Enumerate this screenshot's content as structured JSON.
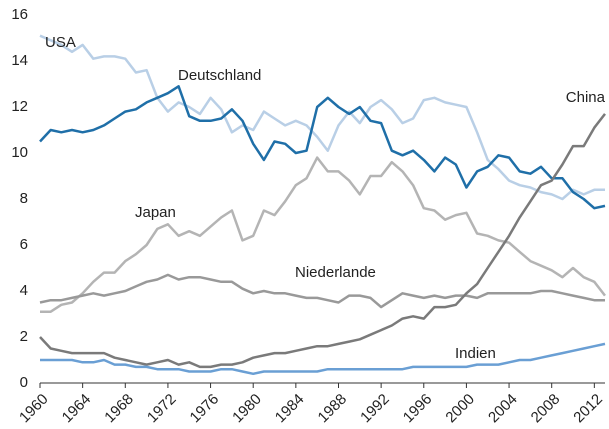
{
  "chart_data": {
    "type": "line",
    "x": [
      1960,
      1961,
      1962,
      1963,
      1964,
      1965,
      1966,
      1967,
      1968,
      1969,
      1970,
      1971,
      1972,
      1973,
      1974,
      1975,
      1976,
      1977,
      1978,
      1979,
      1980,
      1981,
      1982,
      1983,
      1984,
      1985,
      1986,
      1987,
      1988,
      1989,
      1990,
      1991,
      1992,
      1993,
      1994,
      1995,
      1996,
      1997,
      1998,
      1999,
      2000,
      2001,
      2002,
      2003,
      2004,
      2005,
      2006,
      2007,
      2008,
      2009,
      2010,
      2011,
      2012,
      2013
    ],
    "series": [
      {
        "name": "USA",
        "color": "#b9cfe6",
        "values": [
          15.1,
          14.9,
          14.7,
          14.4,
          14.7,
          14.1,
          14.2,
          14.2,
          14.1,
          13.5,
          13.6,
          12.4,
          11.8,
          12.2,
          12.0,
          11.7,
          12.4,
          11.9,
          10.9,
          11.2,
          11.0,
          11.8,
          11.5,
          11.2,
          11.4,
          11.2,
          10.7,
          10.1,
          11.2,
          11.8,
          11.3,
          12.0,
          12.3,
          11.9,
          11.3,
          11.5,
          12.3,
          12.4,
          12.2,
          12.1,
          12.0,
          10.9,
          9.7,
          9.3,
          8.8,
          8.6,
          8.5,
          8.3,
          8.2,
          8.0,
          8.4,
          8.2,
          8.4,
          8.4
        ]
      },
      {
        "name": "Deutschland",
        "color": "#1f6fa8",
        "values": [
          10.5,
          11.0,
          10.9,
          11.0,
          10.9,
          11.0,
          11.2,
          11.5,
          11.8,
          11.9,
          12.2,
          12.4,
          12.6,
          12.9,
          11.6,
          11.4,
          11.4,
          11.5,
          11.9,
          11.4,
          10.4,
          9.7,
          10.5,
          10.4,
          10.0,
          10.1,
          12.0,
          12.4,
          12.0,
          11.7,
          12.0,
          11.4,
          11.3,
          10.1,
          9.9,
          10.1,
          9.7,
          9.2,
          9.8,
          9.5,
          8.5,
          9.2,
          9.4,
          9.9,
          9.8,
          9.2,
          9.1,
          9.4,
          8.9,
          8.9,
          8.3,
          8.0,
          7.6,
          7.7
        ]
      },
      {
        "name": "Japan",
        "color": "#b4b4b4",
        "values": [
          3.1,
          3.1,
          3.4,
          3.5,
          3.9,
          4.4,
          4.8,
          4.8,
          5.3,
          5.6,
          6.0,
          6.7,
          6.9,
          6.4,
          6.6,
          6.4,
          6.8,
          7.2,
          7.5,
          6.2,
          6.4,
          7.5,
          7.3,
          7.9,
          8.6,
          8.9,
          9.8,
          9.2,
          9.2,
          8.8,
          8.2,
          9.0,
          9.0,
          9.6,
          9.2,
          8.6,
          7.6,
          7.5,
          7.1,
          7.3,
          7.4,
          6.5,
          6.4,
          6.2,
          6.1,
          5.7,
          5.3,
          5.1,
          4.9,
          4.6,
          5.0,
          4.6,
          4.4,
          3.8
        ]
      },
      {
        "name": "Niederlande",
        "color": "#999999",
        "values": [
          3.5,
          3.6,
          3.6,
          3.7,
          3.8,
          3.9,
          3.8,
          3.9,
          4.0,
          4.2,
          4.4,
          4.5,
          4.7,
          4.5,
          4.6,
          4.6,
          4.5,
          4.4,
          4.4,
          4.1,
          3.9,
          4.0,
          3.9,
          3.9,
          3.8,
          3.7,
          3.7,
          3.6,
          3.5,
          3.8,
          3.8,
          3.7,
          3.3,
          3.6,
          3.9,
          3.8,
          3.7,
          3.8,
          3.7,
          3.8,
          3.8,
          3.7,
          3.9,
          3.9,
          3.9,
          3.9,
          3.9,
          4.0,
          4.0,
          3.9,
          3.8,
          3.7,
          3.6,
          3.6
        ]
      },
      {
        "name": "China",
        "color": "#7a7a7a",
        "values": [
          2.0,
          1.5,
          1.4,
          1.3,
          1.3,
          1.3,
          1.3,
          1.1,
          1.0,
          0.9,
          0.8,
          0.9,
          1.0,
          0.8,
          0.9,
          0.7,
          0.7,
          0.8,
          0.8,
          0.9,
          1.1,
          1.2,
          1.3,
          1.3,
          1.4,
          1.5,
          1.6,
          1.6,
          1.7,
          1.8,
          1.9,
          2.1,
          2.3,
          2.5,
          2.8,
          2.9,
          2.8,
          3.3,
          3.3,
          3.4,
          3.9,
          4.3,
          5.0,
          5.7,
          6.4,
          7.2,
          7.9,
          8.6,
          8.8,
          9.5,
          10.3,
          10.3,
          11.1,
          11.7
        ]
      },
      {
        "name": "Indien",
        "color": "#6a9fd4",
        "values": [
          1.0,
          1.0,
          1.0,
          1.0,
          0.9,
          0.9,
          1.0,
          0.8,
          0.8,
          0.7,
          0.7,
          0.6,
          0.6,
          0.6,
          0.5,
          0.5,
          0.5,
          0.6,
          0.6,
          0.5,
          0.4,
          0.5,
          0.5,
          0.5,
          0.5,
          0.5,
          0.5,
          0.6,
          0.6,
          0.6,
          0.6,
          0.6,
          0.6,
          0.6,
          0.6,
          0.7,
          0.7,
          0.7,
          0.7,
          0.7,
          0.7,
          0.8,
          0.8,
          0.8,
          0.9,
          1.0,
          1.0,
          1.1,
          1.2,
          1.3,
          1.4,
          1.5,
          1.6,
          1.7
        ]
      }
    ],
    "xlim": [
      1960,
      2013
    ],
    "xticks": [
      1960,
      1964,
      1968,
      1972,
      1976,
      1980,
      1984,
      1988,
      1992,
      1996,
      2000,
      2004,
      2008,
      2012
    ],
    "ylim": [
      0,
      16
    ],
    "yticks": [
      0,
      2,
      4,
      6,
      8,
      10,
      12,
      14,
      16
    ]
  }
}
